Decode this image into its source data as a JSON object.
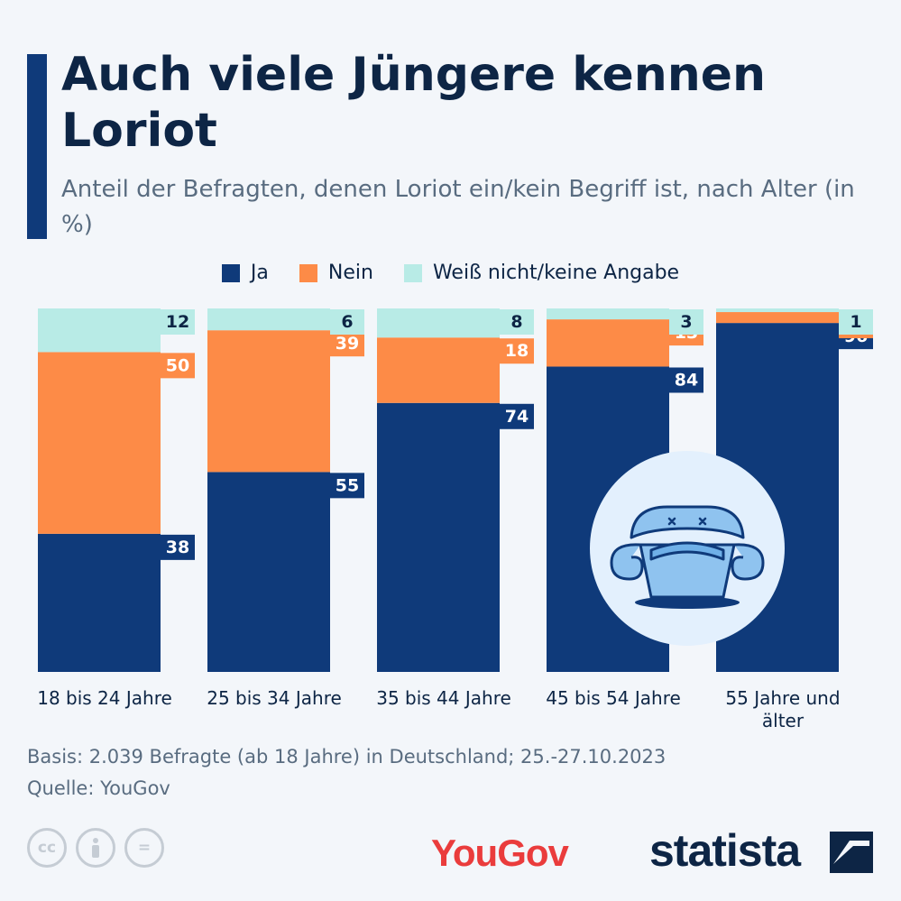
{
  "title": "Auch viele Jüngere kennen Loriot",
  "subtitle": "Anteil der Befragten, denen Loriot ein/kein Begriff ist, nach Alter (in %)",
  "colors": {
    "ja": "#0f3a7a",
    "nein": "#fd8b47",
    "weiss_nicht": "#b8ebe6",
    "accent": "#0f3a7a",
    "yougov": "#ea3c3c"
  },
  "legend": [
    {
      "label": "Ja",
      "color": "#0f3a7a"
    },
    {
      "label": "Nein",
      "color": "#fd8b47"
    },
    {
      "label": "Weiß nicht/keine Angabe",
      "color": "#b8ebe6"
    }
  ],
  "chart_data": {
    "type": "bar",
    "stacked": true,
    "categories": [
      "18 bis 24 Jahre",
      "25 bis 34 Jahre",
      "35 bis 44 Jahre",
      "45 bis 54 Jahre",
      "55 Jahre und älter"
    ],
    "series": [
      {
        "name": "Ja",
        "values": [
          38,
          55,
          74,
          84,
          96
        ]
      },
      {
        "name": "Nein",
        "values": [
          50,
          39,
          18,
          13,
          3
        ]
      },
      {
        "name": "Weiß nicht/keine Angabe",
        "values": [
          12,
          6,
          8,
          3,
          1
        ]
      }
    ],
    "title": "Auch viele Jüngere kennen Loriot",
    "ylim": [
      0,
      100
    ],
    "grid": false,
    "legend_position": "top"
  },
  "footer": {
    "basis": "Basis: 2.039 Befragte (ab 18 Jahre) in Deutschland; 25.-27.10.2023",
    "quelle": "Quelle: YouGov"
  },
  "logos": {
    "yougov": "YouGov",
    "statista": "statista"
  },
  "icons": [
    "creative-commons-icon",
    "attribution-icon",
    "no-derivatives-icon",
    "armchair-icon"
  ]
}
